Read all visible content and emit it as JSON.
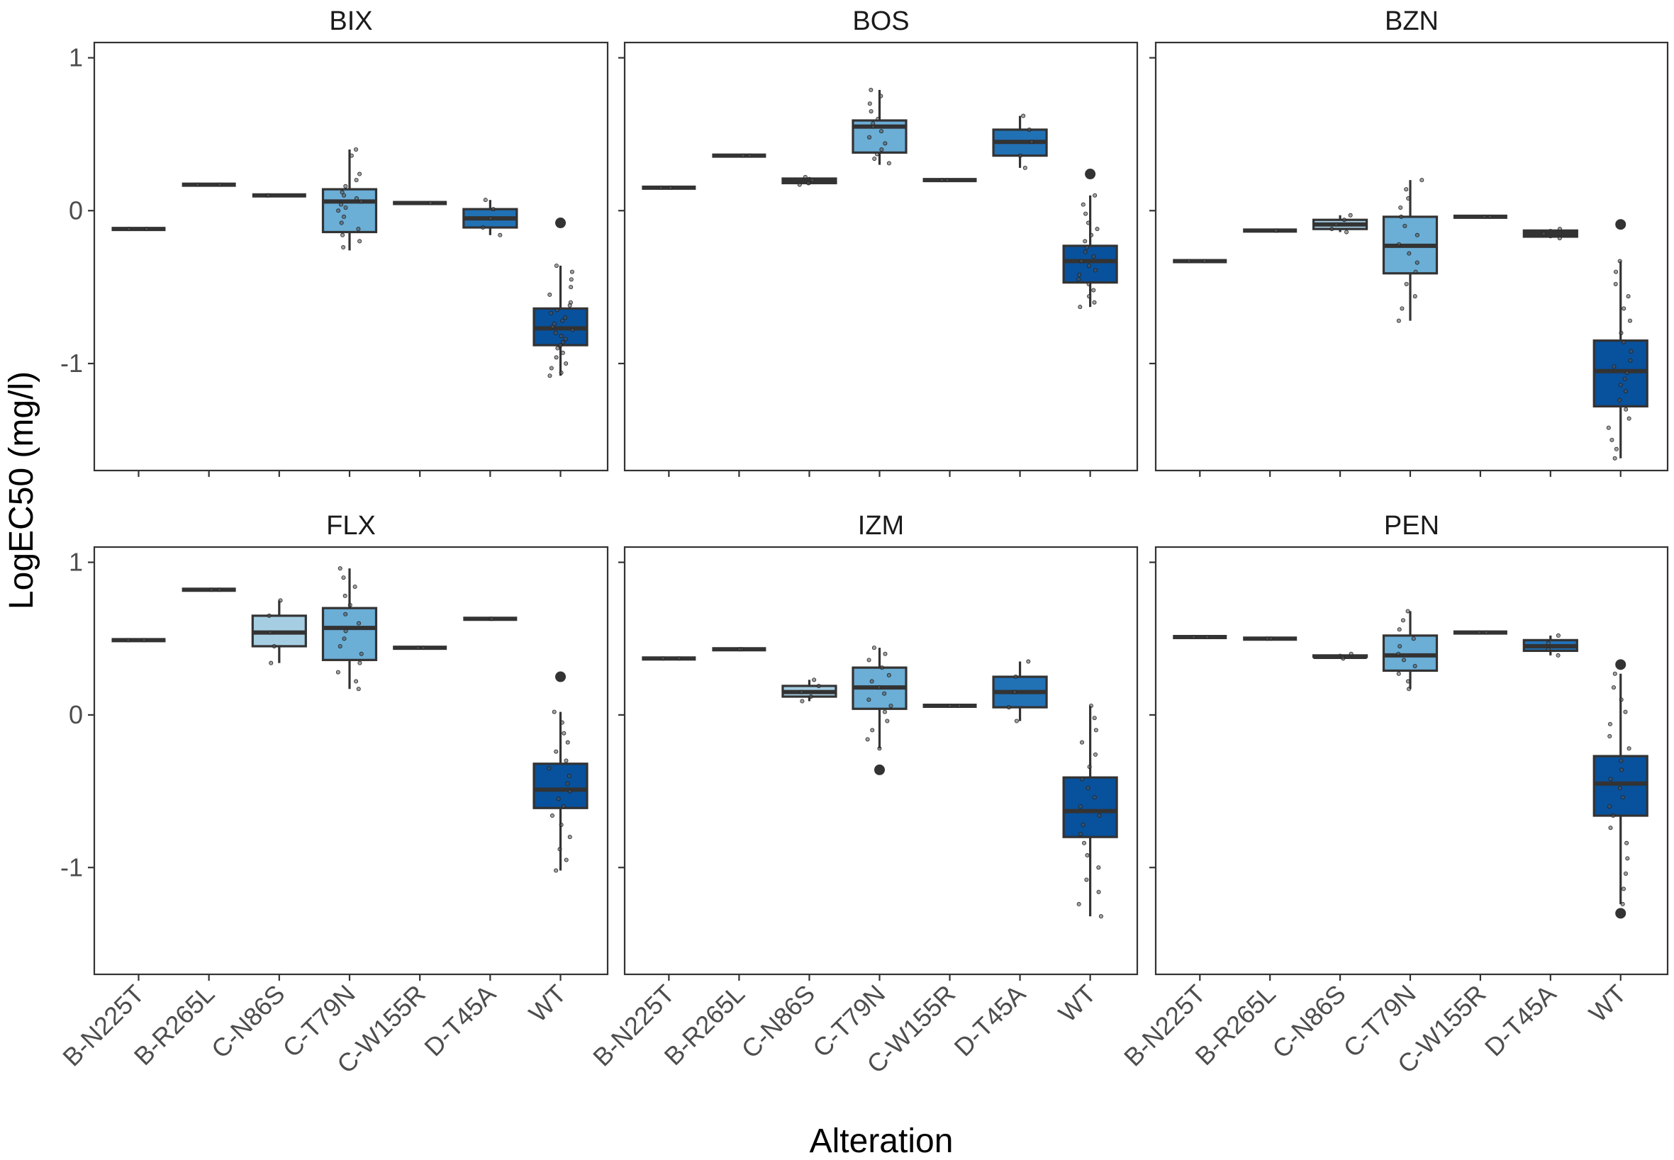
{
  "chart_data": {
    "type": "boxplot",
    "layout": "facet-grid 2x3",
    "ylabel": "LogEC50 (mg/l)",
    "xlabel": "Alteration",
    "ylim": [
      -1.7,
      1.1
    ],
    "yticks": [
      1,
      0,
      -1
    ],
    "ytick_labels": [
      "1",
      "0",
      "-1"
    ],
    "categories": [
      "B-N225T",
      "B-R265L",
      "C-N86S",
      "C-T79N",
      "C-W155R",
      "D-T45A",
      "WT"
    ],
    "fill_colors": {
      "B-N225T": "#c6dbef",
      "B-R265L": "#c6dbef",
      "C-N86S": "#a6cee3",
      "C-T79N": "#6baed6",
      "C-W155R": "#4292c6",
      "D-T45A": "#2171b5",
      "WT": "#08519c"
    },
    "panels": [
      {
        "title": "BIX",
        "groups": [
          {
            "cat": "B-N225T",
            "q1": -0.12,
            "med": -0.12,
            "q3": -0.12,
            "lo": -0.12,
            "hi": -0.12,
            "outliers": [],
            "points": [
              -0.12,
              -0.12
            ]
          },
          {
            "cat": "B-R265L",
            "q1": 0.17,
            "med": 0.17,
            "q3": 0.17,
            "lo": 0.17,
            "hi": 0.17,
            "outliers": [],
            "points": [
              0.17,
              0.17
            ]
          },
          {
            "cat": "C-N86S",
            "q1": 0.1,
            "med": 0.1,
            "q3": 0.1,
            "lo": 0.1,
            "hi": 0.1,
            "outliers": [],
            "points": [
              0.1,
              0.1
            ]
          },
          {
            "cat": "C-T79N",
            "q1": -0.14,
            "med": 0.06,
            "q3": 0.14,
            "lo": -0.26,
            "hi": 0.4,
            "outliers": [],
            "points": [
              0.4,
              0.36,
              0.24,
              0.2,
              0.16,
              0.12,
              0.1,
              0.08,
              0.06,
              0.04,
              0.02,
              0.0,
              -0.04,
              -0.08,
              -0.12,
              -0.16,
              -0.2,
              -0.24
            ]
          },
          {
            "cat": "C-W155R",
            "q1": 0.05,
            "med": 0.05,
            "q3": 0.05,
            "lo": 0.05,
            "hi": 0.05,
            "outliers": [],
            "points": [
              0.05,
              0.05
            ]
          },
          {
            "cat": "D-T45A",
            "q1": -0.11,
            "med": -0.05,
            "q3": 0.01,
            "lo": -0.16,
            "hi": 0.07,
            "outliers": [],
            "points": [
              0.07,
              0.01,
              -0.05,
              -0.11,
              -0.16
            ]
          },
          {
            "cat": "WT",
            "q1": -0.88,
            "med": -0.77,
            "q3": -0.64,
            "lo": -1.08,
            "hi": -0.36,
            "outliers": [
              -0.08
            ],
            "points": [
              -0.36,
              -0.4,
              -0.45,
              -0.5,
              -0.55,
              -0.6,
              -0.62,
              -0.65,
              -0.67,
              -0.7,
              -0.72,
              -0.74,
              -0.76,
              -0.78,
              -0.8,
              -0.82,
              -0.84,
              -0.86,
              -0.88,
              -0.9,
              -0.93,
              -0.96,
              -1.0,
              -1.03,
              -1.06,
              -1.08
            ]
          }
        ]
      },
      {
        "title": "BOS",
        "groups": [
          {
            "cat": "B-N225T",
            "q1": 0.15,
            "med": 0.15,
            "q3": 0.15,
            "lo": 0.15,
            "hi": 0.15,
            "outliers": [],
            "points": [
              0.15,
              0.15
            ]
          },
          {
            "cat": "B-R265L",
            "q1": 0.36,
            "med": 0.36,
            "q3": 0.36,
            "lo": 0.36,
            "hi": 0.36,
            "outliers": [],
            "points": [
              0.36,
              0.36
            ]
          },
          {
            "cat": "C-N86S",
            "q1": 0.18,
            "med": 0.2,
            "q3": 0.21,
            "lo": 0.17,
            "hi": 0.22,
            "outliers": [],
            "points": [
              0.22,
              0.2,
              0.18,
              0.17
            ]
          },
          {
            "cat": "C-T79N",
            "q1": 0.38,
            "med": 0.55,
            "q3": 0.59,
            "lo": 0.3,
            "hi": 0.79,
            "outliers": [],
            "points": [
              0.79,
              0.75,
              0.7,
              0.65,
              0.6,
              0.57,
              0.55,
              0.52,
              0.48,
              0.44,
              0.4,
              0.37,
              0.34,
              0.31
            ]
          },
          {
            "cat": "C-W155R",
            "q1": 0.2,
            "med": 0.2,
            "q3": 0.2,
            "lo": 0.2,
            "hi": 0.2,
            "outliers": [],
            "points": [
              0.2,
              0.2
            ]
          },
          {
            "cat": "D-T45A",
            "q1": 0.36,
            "med": 0.45,
            "q3": 0.53,
            "lo": 0.28,
            "hi": 0.62,
            "outliers": [],
            "points": [
              0.62,
              0.53,
              0.45,
              0.36,
              0.28
            ]
          },
          {
            "cat": "WT",
            "q1": -0.47,
            "med": -0.33,
            "q3": -0.23,
            "lo": -0.63,
            "hi": 0.1,
            "outliers": [
              0.24
            ],
            "points": [
              0.1,
              0.04,
              -0.02,
              -0.08,
              -0.12,
              -0.16,
              -0.2,
              -0.24,
              -0.27,
              -0.3,
              -0.33,
              -0.36,
              -0.39,
              -0.42,
              -0.45,
              -0.48,
              -0.52,
              -0.56,
              -0.6,
              -0.63
            ]
          }
        ]
      },
      {
        "title": "BZN",
        "groups": [
          {
            "cat": "B-N225T",
            "q1": -0.33,
            "med": -0.33,
            "q3": -0.33,
            "lo": -0.33,
            "hi": -0.33,
            "outliers": [],
            "points": [
              -0.33,
              -0.33
            ]
          },
          {
            "cat": "B-R265L",
            "q1": -0.13,
            "med": -0.13,
            "q3": -0.13,
            "lo": -0.13,
            "hi": -0.13,
            "outliers": [],
            "points": [
              -0.13,
              -0.13
            ]
          },
          {
            "cat": "C-N86S",
            "q1": -0.12,
            "med": -0.09,
            "q3": -0.06,
            "lo": -0.14,
            "hi": -0.03,
            "outliers": [],
            "points": [
              -0.03,
              -0.06,
              -0.09,
              -0.12,
              -0.14
            ]
          },
          {
            "cat": "C-T79N",
            "q1": -0.41,
            "med": -0.23,
            "q3": -0.04,
            "lo": -0.72,
            "hi": 0.2,
            "outliers": [],
            "points": [
              0.2,
              0.14,
              0.08,
              0.02,
              -0.04,
              -0.1,
              -0.16,
              -0.22,
              -0.28,
              -0.34,
              -0.4,
              -0.48,
              -0.56,
              -0.64,
              -0.72
            ]
          },
          {
            "cat": "C-W155R",
            "q1": -0.04,
            "med": -0.04,
            "q3": -0.04,
            "lo": -0.04,
            "hi": -0.04,
            "outliers": [],
            "points": [
              -0.04,
              -0.04
            ]
          },
          {
            "cat": "D-T45A",
            "q1": -0.17,
            "med": -0.15,
            "q3": -0.13,
            "lo": -0.18,
            "hi": -0.12,
            "outliers": [],
            "points": [
              -0.12,
              -0.15,
              -0.18
            ]
          },
          {
            "cat": "WT",
            "q1": -1.28,
            "med": -1.05,
            "q3": -0.85,
            "lo": -1.62,
            "hi": -0.33,
            "outliers": [
              -0.09
            ],
            "points": [
              -0.33,
              -0.4,
              -0.48,
              -0.56,
              -0.64,
              -0.72,
              -0.8,
              -0.86,
              -0.92,
              -0.98,
              -1.02,
              -1.06,
              -1.1,
              -1.14,
              -1.18,
              -1.24,
              -1.3,
              -1.36,
              -1.42,
              -1.5,
              -1.56,
              -1.62
            ]
          }
        ]
      },
      {
        "title": "FLX",
        "groups": [
          {
            "cat": "B-N225T",
            "q1": 0.49,
            "med": 0.49,
            "q3": 0.49,
            "lo": 0.49,
            "hi": 0.49,
            "outliers": [],
            "points": [
              0.49,
              0.49
            ]
          },
          {
            "cat": "B-R265L",
            "q1": 0.82,
            "med": 0.82,
            "q3": 0.82,
            "lo": 0.82,
            "hi": 0.82,
            "outliers": [],
            "points": [
              0.82,
              0.82
            ]
          },
          {
            "cat": "C-N86S",
            "q1": 0.45,
            "med": 0.54,
            "q3": 0.65,
            "lo": 0.34,
            "hi": 0.75,
            "outliers": [],
            "points": [
              0.75,
              0.65,
              0.54,
              0.45,
              0.34
            ]
          },
          {
            "cat": "C-T79N",
            "q1": 0.36,
            "med": 0.57,
            "q3": 0.7,
            "lo": 0.17,
            "hi": 0.96,
            "outliers": [],
            "points": [
              0.96,
              0.9,
              0.84,
              0.78,
              0.72,
              0.66,
              0.6,
              0.55,
              0.5,
              0.45,
              0.4,
              0.34,
              0.28,
              0.22,
              0.17
            ]
          },
          {
            "cat": "C-W155R",
            "q1": 0.44,
            "med": 0.44,
            "q3": 0.44,
            "lo": 0.44,
            "hi": 0.44,
            "outliers": [],
            "points": [
              0.44,
              0.44
            ]
          },
          {
            "cat": "D-T45A",
            "q1": 0.63,
            "med": 0.63,
            "q3": 0.63,
            "lo": 0.63,
            "hi": 0.63,
            "outliers": [],
            "points": [
              0.63,
              0.63
            ]
          },
          {
            "cat": "WT",
            "q1": -0.61,
            "med": -0.49,
            "q3": -0.32,
            "lo": -1.02,
            "hi": 0.02,
            "outliers": [
              0.25
            ],
            "points": [
              0.02,
              -0.05,
              -0.12,
              -0.18,
              -0.24,
              -0.3,
              -0.35,
              -0.4,
              -0.45,
              -0.5,
              -0.55,
              -0.6,
              -0.66,
              -0.72,
              -0.8,
              -0.88,
              -0.95,
              -1.02
            ]
          }
        ]
      },
      {
        "title": "IZM",
        "groups": [
          {
            "cat": "B-N225T",
            "q1": 0.37,
            "med": 0.37,
            "q3": 0.37,
            "lo": 0.37,
            "hi": 0.37,
            "outliers": [],
            "points": [
              0.37,
              0.37
            ]
          },
          {
            "cat": "B-R265L",
            "q1": 0.43,
            "med": 0.43,
            "q3": 0.43,
            "lo": 0.43,
            "hi": 0.43,
            "outliers": [],
            "points": [
              0.43,
              0.43
            ]
          },
          {
            "cat": "C-N86S",
            "q1": 0.12,
            "med": 0.15,
            "q3": 0.19,
            "lo": 0.09,
            "hi": 0.23,
            "outliers": [],
            "points": [
              0.23,
              0.19,
              0.15,
              0.12,
              0.09
            ]
          },
          {
            "cat": "C-T79N",
            "q1": 0.04,
            "med": 0.18,
            "q3": 0.31,
            "lo": -0.22,
            "hi": 0.44,
            "outliers": [
              -0.36
            ],
            "points": [
              0.44,
              0.4,
              0.36,
              0.31,
              0.26,
              0.22,
              0.18,
              0.14,
              0.1,
              0.06,
              0.02,
              -0.04,
              -0.1,
              -0.16,
              -0.22
            ]
          },
          {
            "cat": "C-W155R",
            "q1": 0.06,
            "med": 0.06,
            "q3": 0.06,
            "lo": 0.06,
            "hi": 0.06,
            "outliers": [],
            "points": [
              0.06,
              0.06
            ]
          },
          {
            "cat": "D-T45A",
            "q1": 0.05,
            "med": 0.15,
            "q3": 0.25,
            "lo": -0.04,
            "hi": 0.35,
            "outliers": [],
            "points": [
              0.35,
              0.25,
              0.15,
              0.05,
              -0.04
            ]
          },
          {
            "cat": "WT",
            "q1": -0.8,
            "med": -0.63,
            "q3": -0.41,
            "lo": -1.32,
            "hi": 0.06,
            "outliers": [],
            "points": [
              0.06,
              -0.02,
              -0.1,
              -0.18,
              -0.26,
              -0.34,
              -0.42,
              -0.48,
              -0.54,
              -0.6,
              -0.66,
              -0.72,
              -0.78,
              -0.84,
              -0.92,
              -1.0,
              -1.08,
              -1.16,
              -1.24,
              -1.32
            ]
          }
        ]
      },
      {
        "title": "PEN",
        "groups": [
          {
            "cat": "B-N225T",
            "q1": 0.51,
            "med": 0.51,
            "q3": 0.51,
            "lo": 0.51,
            "hi": 0.51,
            "outliers": [],
            "points": [
              0.51,
              0.51
            ]
          },
          {
            "cat": "B-R265L",
            "q1": 0.5,
            "med": 0.5,
            "q3": 0.5,
            "lo": 0.5,
            "hi": 0.5,
            "outliers": [],
            "points": [
              0.5,
              0.5
            ]
          },
          {
            "cat": "C-N86S",
            "q1": 0.38,
            "med": 0.38,
            "q3": 0.39,
            "lo": 0.37,
            "hi": 0.4,
            "outliers": [],
            "points": [
              0.4,
              0.38,
              0.37
            ]
          },
          {
            "cat": "C-T79N",
            "q1": 0.29,
            "med": 0.39,
            "q3": 0.52,
            "lo": 0.17,
            "hi": 0.68,
            "outliers": [],
            "points": [
              0.68,
              0.62,
              0.56,
              0.5,
              0.45,
              0.4,
              0.36,
              0.32,
              0.27,
              0.22,
              0.17
            ]
          },
          {
            "cat": "C-W155R",
            "q1": 0.54,
            "med": 0.54,
            "q3": 0.54,
            "lo": 0.54,
            "hi": 0.54,
            "outliers": [],
            "points": [
              0.54,
              0.54
            ]
          },
          {
            "cat": "D-T45A",
            "q1": 0.42,
            "med": 0.45,
            "q3": 0.49,
            "lo": 0.39,
            "hi": 0.52,
            "outliers": [],
            "points": [
              0.52,
              0.47,
              0.43,
              0.39
            ]
          },
          {
            "cat": "WT",
            "q1": -0.66,
            "med": -0.45,
            "q3": -0.27,
            "lo": -1.24,
            "hi": 0.27,
            "outliers": [
              0.33,
              -1.3
            ],
            "points": [
              0.27,
              0.18,
              0.1,
              0.02,
              -0.06,
              -0.14,
              -0.22,
              -0.3,
              -0.36,
              -0.42,
              -0.48,
              -0.54,
              -0.6,
              -0.66,
              -0.74,
              -0.84,
              -0.94,
              -1.04,
              -1.14,
              -1.24
            ]
          }
        ]
      }
    ]
  }
}
